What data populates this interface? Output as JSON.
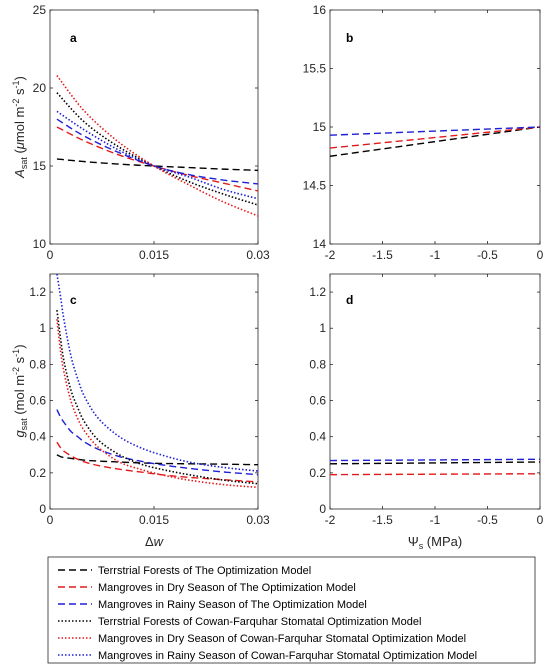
{
  "chart_data": [
    {
      "panel": "a",
      "type": "line",
      "xlabel": "",
      "ylabel": "A_sat (μmol m^-2 s^-1)",
      "xlim": [
        0,
        0.03
      ],
      "ylim": [
        10,
        25
      ],
      "xticks": [
        0,
        0.015,
        0.03
      ],
      "xtick_labels": [
        "0",
        "0.015",
        "0.03"
      ],
      "yticks": [
        10,
        15,
        20,
        25
      ],
      "ytick_labels": [
        "10",
        "15",
        "20",
        "25"
      ],
      "x": [
        0.001,
        0.005,
        0.01,
        0.015,
        0.02,
        0.025,
        0.03
      ],
      "series": [
        {
          "key": "tf_opt",
          "values": [
            15.45,
            15.28,
            15.12,
            15.0,
            14.9,
            14.8,
            14.72
          ]
        },
        {
          "key": "mg_dry_opt",
          "values": [
            17.5,
            16.6,
            15.7,
            15.0,
            14.4,
            13.9,
            13.4
          ]
        },
        {
          "key": "mg_rainy_opt",
          "values": [
            18.0,
            16.9,
            15.85,
            15.0,
            14.45,
            14.1,
            13.85
          ]
        },
        {
          "key": "tf_cf",
          "values": [
            19.7,
            17.8,
            16.2,
            15.0,
            14.0,
            13.2,
            12.5
          ]
        },
        {
          "key": "mg_dry_cf",
          "values": [
            20.8,
            18.5,
            16.5,
            15.0,
            13.8,
            12.7,
            11.8
          ]
        },
        {
          "key": "mg_rainy_cf",
          "values": [
            18.5,
            17.3,
            16.0,
            15.0,
            14.3,
            13.5,
            12.9
          ]
        }
      ]
    },
    {
      "panel": "b",
      "type": "line",
      "xlabel": "",
      "ylabel": "",
      "xlim": [
        -2,
        0
      ],
      "ylim": [
        14,
        16
      ],
      "xticks": [
        -2,
        -1.5,
        -1,
        -0.5,
        0
      ],
      "xtick_labels": [
        "-2",
        "-1.5",
        "-1",
        "-0.5",
        "0"
      ],
      "yticks": [
        14,
        14.5,
        15,
        15.5,
        16
      ],
      "ytick_labels": [
        "14",
        "14.5",
        "15",
        "15.5",
        "16"
      ],
      "x": [
        -2,
        0
      ],
      "series": [
        {
          "key": "tf_opt",
          "values": [
            14.75,
            15.0
          ]
        },
        {
          "key": "mg_dry_opt",
          "values": [
            14.82,
            15.0
          ]
        },
        {
          "key": "mg_rainy_opt",
          "values": [
            14.93,
            15.0
          ]
        }
      ]
    },
    {
      "panel": "c",
      "type": "line",
      "xlabel": "Δw",
      "ylabel": "g_sat (mol m^-2 s^-1)",
      "xlim": [
        0,
        0.03
      ],
      "ylim": [
        0,
        1.3
      ],
      "xticks": [
        0,
        0.015,
        0.03
      ],
      "xtick_labels": [
        "0",
        "0.015",
        "0.03"
      ],
      "yticks": [
        0,
        0.2,
        0.4,
        0.6,
        0.8,
        1.0,
        1.2
      ],
      "ytick_labels": [
        "0",
        "0.2",
        "0.4",
        "0.6",
        "0.8",
        "1",
        "1.2"
      ],
      "x": [
        0.001,
        0.0015,
        0.002,
        0.003,
        0.004,
        0.005,
        0.007,
        0.01,
        0.013,
        0.016,
        0.02,
        0.025,
        0.03
      ],
      "series": [
        {
          "key": "tf_opt",
          "values": [
            0.3,
            0.29,
            0.285,
            0.28,
            0.275,
            0.27,
            0.265,
            0.26,
            0.255,
            0.252,
            0.25,
            0.248,
            0.245
          ]
        },
        {
          "key": "mg_dry_opt",
          "values": [
            0.37,
            0.34,
            0.32,
            0.295,
            0.275,
            0.26,
            0.24,
            0.22,
            0.205,
            0.19,
            0.175,
            0.162,
            0.15
          ]
        },
        {
          "key": "mg_rainy_opt",
          "values": [
            0.55,
            0.51,
            0.48,
            0.43,
            0.4,
            0.37,
            0.33,
            0.29,
            0.265,
            0.245,
            0.225,
            0.205,
            0.19
          ]
        },
        {
          "key": "tf_cf",
          "values": [
            1.1,
            0.95,
            0.82,
            0.66,
            0.56,
            0.48,
            0.38,
            0.3,
            0.25,
            0.22,
            0.19,
            0.16,
            0.14
          ]
        },
        {
          "key": "mg_dry_cf",
          "values": [
            1.05,
            0.88,
            0.76,
            0.6,
            0.5,
            0.43,
            0.34,
            0.26,
            0.22,
            0.19,
            0.16,
            0.135,
            0.12
          ]
        },
        {
          "key": "mg_rainy_cf",
          "values": [
            1.3,
            1.18,
            1.05,
            0.85,
            0.72,
            0.62,
            0.5,
            0.4,
            0.34,
            0.3,
            0.26,
            0.23,
            0.21
          ]
        }
      ]
    },
    {
      "panel": "d",
      "type": "line",
      "xlabel": "Ψ_s (MPa)",
      "ylabel": "",
      "xlim": [
        -2,
        0
      ],
      "ylim": [
        0,
        1.3
      ],
      "xticks": [
        -2,
        -1.5,
        -1,
        -0.5,
        0
      ],
      "xtick_labels": [
        "-2",
        "-1.5",
        "-1",
        "-0.5",
        "0"
      ],
      "yticks": [
        0,
        0.2,
        0.4,
        0.6,
        0.8,
        1.0,
        1.2
      ],
      "ytick_labels": [
        "0",
        "0.2",
        "0.4",
        "0.6",
        "0.8",
        "1",
        "1.2"
      ],
      "x": [
        -2,
        0
      ],
      "series": [
        {
          "key": "tf_opt",
          "values": [
            0.25,
            0.26
          ]
        },
        {
          "key": "mg_dry_opt",
          "values": [
            0.19,
            0.195
          ]
        },
        {
          "key": "mg_rainy_opt",
          "values": [
            0.268,
            0.275
          ]
        }
      ]
    }
  ],
  "legend": {
    "placement": "bottom",
    "entries": [
      {
        "key": "tf_opt",
        "label": "Terrstrial Forests of The Optimization Model",
        "color": "#000000",
        "style": "dashed"
      },
      {
        "key": "mg_dry_opt",
        "label": "Mangroves in Dry Season of The Optimization Model",
        "color": "#e31a1c",
        "style": "dashed"
      },
      {
        "key": "mg_rainy_opt",
        "label": "Mangroves in Rainy Season of The Optimization Model",
        "color": "#1f1fd6",
        "style": "dashed"
      },
      {
        "key": "tf_cf",
        "label": "Terrstrial Forests of Cowan-Farquhar Stomatal Optimization Model",
        "color": "#000000",
        "style": "dotted"
      },
      {
        "key": "mg_dry_cf",
        "label": "Mangroves in Dry Season of Cowan-Farquhar Stomatal Optimization Model",
        "color": "#e31a1c",
        "style": "dotted"
      },
      {
        "key": "mg_rainy_cf",
        "label": "Mangroves in Rainy Season of Cowan-Farquhar Stomatal Optimization Model",
        "color": "#1f1fd6",
        "style": "dotted"
      }
    ]
  }
}
